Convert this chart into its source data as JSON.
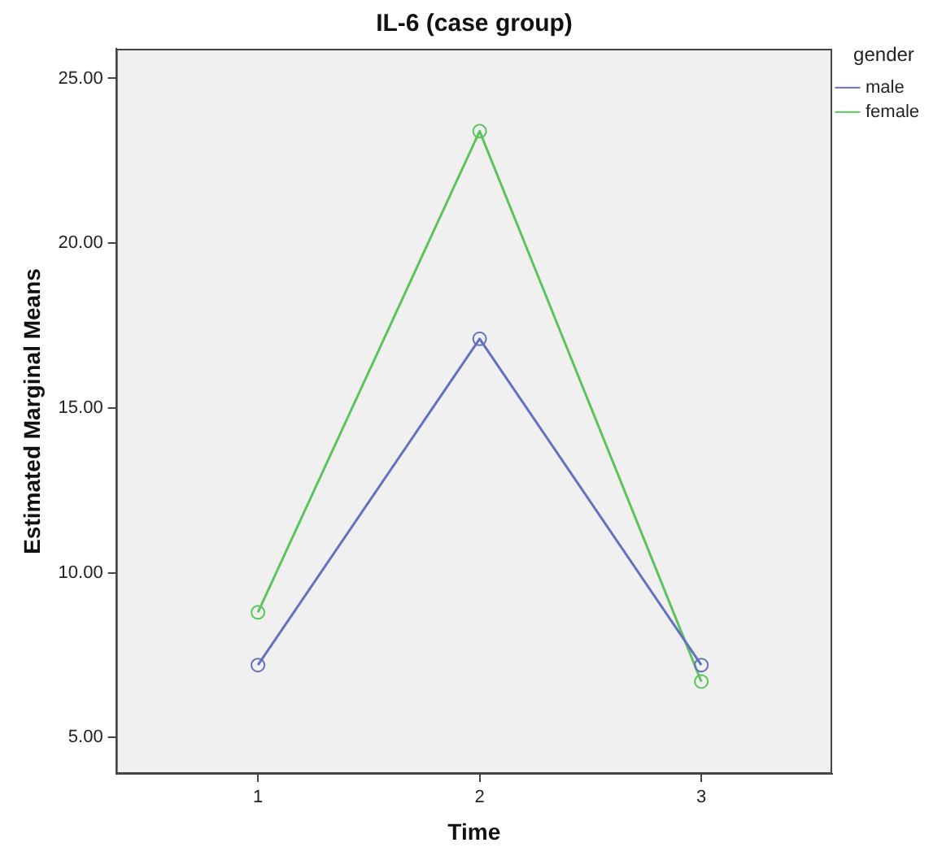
{
  "chart_data": {
    "type": "line",
    "title": "IL-6 (case group)",
    "xlabel": "Time",
    "ylabel": "Estimated Marginal Means",
    "legend_title": "gender",
    "x": [
      1,
      2,
      3
    ],
    "series": [
      {
        "name": "male",
        "color": "#6470c0",
        "values": [
          7.2,
          17.1,
          7.2
        ]
      },
      {
        "name": "female",
        "color": "#5cc45c",
        "values": [
          8.8,
          23.4,
          6.7
        ]
      }
    ],
    "xlim": [
      0.36,
      3.59
    ],
    "xticks": [
      1,
      2,
      3
    ],
    "ylim": [
      3.9,
      25.9
    ],
    "yticks": [
      {
        "value": 5,
        "label": "5.00"
      },
      {
        "value": 10,
        "label": "10.00"
      },
      {
        "value": 15,
        "label": "15.00"
      },
      {
        "value": 20,
        "label": "20.00"
      },
      {
        "value": 25,
        "label": "25.00"
      }
    ],
    "grid": false,
    "legend": "top right",
    "marker": "circle",
    "line_style": "solid"
  }
}
